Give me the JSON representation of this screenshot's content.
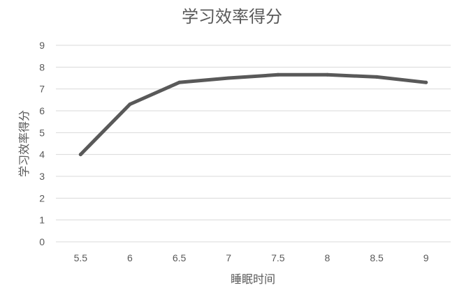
{
  "chart_data": {
    "type": "line",
    "title": "学习效率得分",
    "xlabel": "睡眠时间",
    "ylabel": "学习效率得分",
    "categories": [
      "5.5",
      "6",
      "6.5",
      "7",
      "7.5",
      "8",
      "8.5",
      "9"
    ],
    "series": [
      {
        "values": [
          4.0,
          6.3,
          7.3,
          7.5,
          7.65,
          7.65,
          7.55,
          7.3
        ]
      }
    ],
    "ylim": [
      0,
      9
    ],
    "yticks": [
      0,
      1,
      2,
      3,
      4,
      5,
      6,
      7,
      8,
      9
    ],
    "grid": true,
    "legend": "none",
    "colors": {
      "line": "#595959",
      "grid": "#d9d9d9",
      "text": "#595959"
    }
  }
}
